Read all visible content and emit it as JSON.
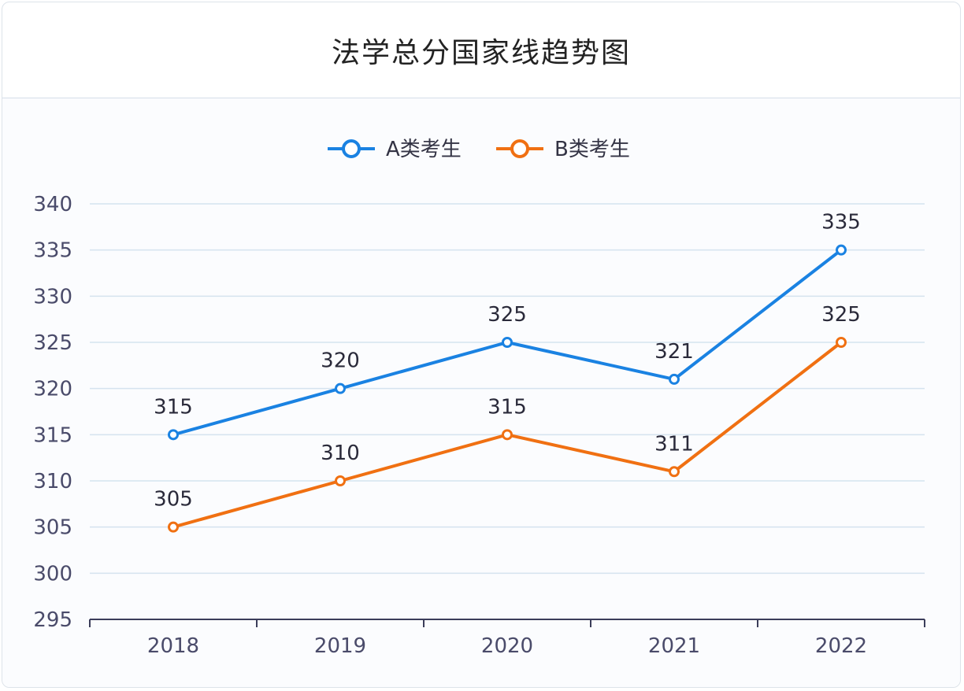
{
  "chart_data": {
    "type": "line",
    "title": "法学总分国家线趋势图",
    "categories": [
      "2018",
      "2019",
      "2020",
      "2021",
      "2022"
    ],
    "series": [
      {
        "name": "A类考生",
        "color": "#1a82e2",
        "values": [
          315,
          320,
          325,
          321,
          335
        ]
      },
      {
        "name": "B类考生",
        "color": "#f07012",
        "values": [
          305,
          310,
          315,
          311,
          325
        ]
      }
    ],
    "ylim": [
      295,
      340
    ],
    "yticks": [
      295,
      300,
      305,
      310,
      315,
      320,
      325,
      330,
      335,
      340
    ],
    "legend_position": "top-center",
    "grid": true
  }
}
